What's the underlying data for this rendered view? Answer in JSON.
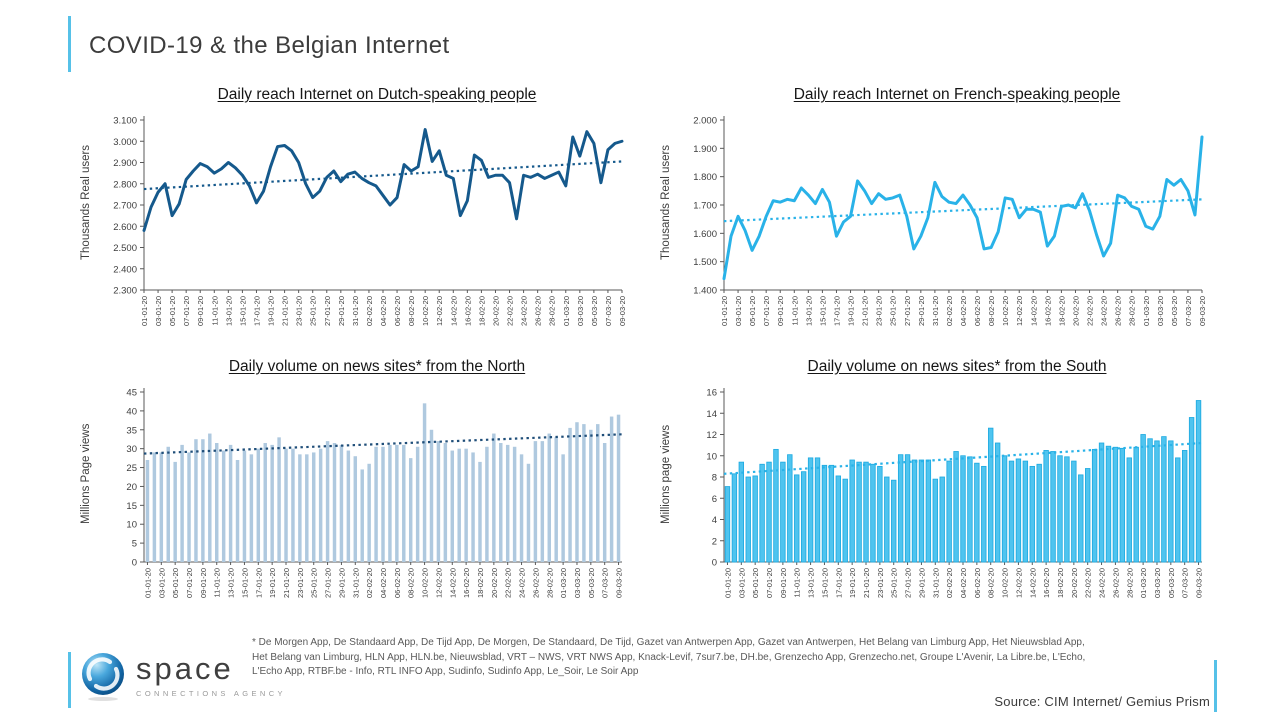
{
  "header": {
    "title": "COVID-19 & the Belgian Internet"
  },
  "colors": {
    "accent": "#56C1E8",
    "dark_blue_line": "#15598C",
    "cyan_line": "#29B2E8",
    "north_bar": "#AFC9DF",
    "north_trend": "#1F4E79",
    "south_bar": "#4FC4EF",
    "axis_text": "#3d3d3d"
  },
  "dates_shown": [
    "01-01-20",
    "03-01-20",
    "05-01-20",
    "07-01-20",
    "09-01-20",
    "11-01-20",
    "13-01-20",
    "15-01-20",
    "17-01-20",
    "19-01-20",
    "21-01-20",
    "23-01-20",
    "25-01-20",
    "27-01-20",
    "29-01-20",
    "31-01-20",
    "02-02-20",
    "04-02-20",
    "06-02-20",
    "08-02-20",
    "10-02-20",
    "12-02-20",
    "14-02-20",
    "16-02-20",
    "18-02-20",
    "20-02-20",
    "22-02-20",
    "24-02-20",
    "26-02-20",
    "28-02-20",
    "01-03-20",
    "03-03-20",
    "05-03-20",
    "07-03-20",
    "09-03-20"
  ],
  "chart_data": [
    {
      "type": "line",
      "title": "Daily reach Internet on Dutch-speaking people",
      "y_title": "Thousands Real users",
      "ylim": [
        2300,
        3100
      ],
      "ytick_values": [
        2300,
        2400,
        2500,
        2600,
        2700,
        2800,
        2900,
        3000,
        3100
      ],
      "ytick_labels": [
        "2.300",
        "2.400",
        "2.500",
        "2.600",
        "2.700",
        "2.800",
        "2.900",
        "3.000",
        "3.100"
      ],
      "values": [
        2580,
        2690,
        2760,
        2800,
        2650,
        2705,
        2820,
        2860,
        2895,
        2880,
        2850,
        2870,
        2900,
        2875,
        2840,
        2790,
        2710,
        2765,
        2880,
        2975,
        2980,
        2955,
        2900,
        2800,
        2735,
        2765,
        2830,
        2860,
        2810,
        2845,
        2855,
        2825,
        2805,
        2790,
        2745,
        2700,
        2735,
        2890,
        2860,
        2880,
        3055,
        2905,
        2955,
        2840,
        2825,
        2650,
        2720,
        2935,
        2910,
        2830,
        2840,
        2840,
        2805,
        2635,
        2840,
        2830,
        2845,
        2825,
        2840,
        2855,
        2790,
        3020,
        2930,
        3045,
        2990,
        2805,
        2960,
        2990,
        3000
      ],
      "trend": {
        "start": 2775,
        "end": 2905
      },
      "line_color": "#15598C",
      "trend_color": "#15598C"
    },
    {
      "type": "line",
      "title": "Daily reach Internet on French-speaking people",
      "y_title": "Thousands Real users",
      "ylim": [
        1400,
        2000
      ],
      "ytick_values": [
        1400,
        1500,
        1600,
        1700,
        1800,
        1900,
        2000
      ],
      "ytick_labels": [
        "1.400",
        "1.500",
        "1.600",
        "1.700",
        "1.800",
        "1.900",
        "2.000"
      ],
      "values": [
        1440,
        1590,
        1660,
        1610,
        1540,
        1590,
        1660,
        1715,
        1710,
        1720,
        1715,
        1760,
        1735,
        1705,
        1755,
        1710,
        1590,
        1640,
        1660,
        1785,
        1750,
        1705,
        1740,
        1720,
        1725,
        1735,
        1660,
        1545,
        1590,
        1655,
        1780,
        1730,
        1710,
        1705,
        1735,
        1700,
        1655,
        1545,
        1550,
        1605,
        1725,
        1720,
        1655,
        1685,
        1685,
        1675,
        1555,
        1590,
        1695,
        1700,
        1690,
        1740,
        1680,
        1595,
        1520,
        1565,
        1735,
        1725,
        1695,
        1685,
        1625,
        1615,
        1660,
        1790,
        1770,
        1790,
        1750,
        1665,
        1940
      ],
      "trend": {
        "start": 1643,
        "end": 1720
      },
      "line_color": "#29B2E8",
      "trend_color": "#29B2E8"
    },
    {
      "type": "bar",
      "title": "Daily volume on news sites* from the North",
      "y_title": "Millions Page views",
      "ylim": [
        0,
        45
      ],
      "ytick_values": [
        0,
        5,
        10,
        15,
        20,
        25,
        30,
        35,
        40,
        45
      ],
      "ytick_labels": [
        "0",
        "5",
        "10",
        "15",
        "20",
        "25",
        "30",
        "35",
        "40",
        "45"
      ],
      "values": [
        27,
        29,
        29,
        30.5,
        26.5,
        31,
        29,
        32.5,
        32.5,
        34,
        31.5,
        29.5,
        31,
        27,
        29.5,
        28.5,
        30,
        31.5,
        31,
        33,
        30,
        30,
        28.5,
        28.5,
        29,
        30,
        32,
        31.5,
        31,
        29.5,
        28,
        24.5,
        26,
        30.5,
        30.5,
        31,
        31,
        31,
        27.5,
        30.5,
        42,
        35,
        32,
        31.5,
        29.5,
        30,
        30,
        29,
        26.5,
        30.5,
        34,
        31.5,
        31,
        30.5,
        28.5,
        26,
        32,
        32,
        34,
        33,
        28.5,
        35.5,
        37,
        36.5,
        35,
        36.5,
        31.5,
        38.5,
        39
      ],
      "trend": {
        "start": 28.7,
        "end": 33.8
      },
      "bar_fill": "#AFC9DF",
      "trend_color": "#1F4E79"
    },
    {
      "type": "bar",
      "title": "Daily volume on news sites* from the South",
      "y_title": "Millions page views",
      "ylim": [
        0,
        16
      ],
      "ytick_values": [
        0,
        2,
        4,
        6,
        8,
        10,
        12,
        14,
        16
      ],
      "ytick_labels": [
        "0",
        "2",
        "4",
        "6",
        "8",
        "10",
        "12",
        "14",
        "16"
      ],
      "values": [
        7.1,
        8.3,
        9.4,
        8.0,
        8.1,
        9.2,
        9.4,
        10.6,
        9.4,
        10.1,
        8.2,
        8.5,
        9.8,
        9.8,
        9.1,
        9.1,
        8.1,
        7.8,
        9.6,
        9.4,
        9.4,
        9.2,
        9.0,
        8.0,
        7.7,
        10.1,
        10.1,
        9.6,
        9.6,
        9.6,
        7.8,
        8.0,
        9.5,
        10.4,
        10.0,
        9.9,
        9.3,
        9.0,
        12.6,
        11.2,
        10.0,
        9.5,
        9.7,
        9.5,
        9.0,
        9.2,
        10.5,
        10.4,
        10.0,
        9.9,
        9.5,
        8.2,
        8.8,
        10.6,
        11.2,
        10.9,
        10.8,
        10.7,
        9.8,
        10.8,
        12.0,
        11.6,
        11.4,
        11.8,
        11.4,
        9.8,
        10.5,
        13.6,
        15.2
      ],
      "trend": {
        "start": 8.3,
        "end": 11.2
      },
      "bar_fill": "#4FC4EF",
      "bar_stroke": "#1BA9E0",
      "trend_color": "#29B2E8"
    }
  ],
  "footnote": {
    "line1": "* De Morgen App,  De Standaard App, De Tijd App, De Morgen, De Standaard, De Tijd, Gazet van Antwerpen App, Gazet van Antwerpen, Het Belang van Limburg App, Het Nieuwsblad App,",
    "line2": "Het Belang van Limburg, HLN App, HLN.be, Nieuwsblad, VRT – NWS, VRT NWS App,  Knack-Levif, 7sur7.be, DH.be, Grenzecho App, Grenzecho.net, Groupe L'Avenir, La Libre.be, L'Echo,",
    "line3": "L'Echo App, RTBF.be - Info, RTL INFO App, Sudinfo, Sudinfo App, Le_Soir, Le Soir App"
  },
  "logo": {
    "name": "space",
    "tagline": "CONNECTIONS AGENCY"
  },
  "source": {
    "label": "Source: CIM Internet/ Gemius Prism"
  }
}
